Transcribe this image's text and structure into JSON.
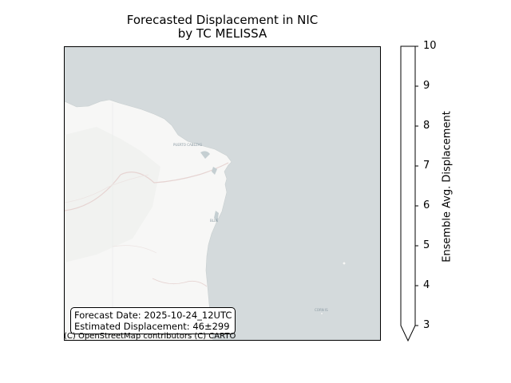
{
  "figure": {
    "title_line1": "Forecasted Displacement in NIC",
    "title_line2": "by TC MELISSA"
  },
  "map": {
    "land_color": "#f7f7f6",
    "water_color": "#d4dadc",
    "place_labels": [
      "PUERTO CABEZAS",
      "BLUE",
      "CORN IS"
    ]
  },
  "info_box": {
    "forecast_date": "Forecast Date: 2025-10-24_12UTC",
    "estimated_displacement": "Estimated Displacement: 46±299"
  },
  "attribution": "(C) OpenStreetMap contributors (C) CARTO",
  "colorbar": {
    "label": "Ensemble Avg. Displacement",
    "min": 3,
    "max": 10,
    "ticks": [
      "10",
      "9",
      "8",
      "7",
      "6",
      "5",
      "4",
      "3"
    ],
    "extend": "min",
    "fill_color": "#ffffff"
  }
}
